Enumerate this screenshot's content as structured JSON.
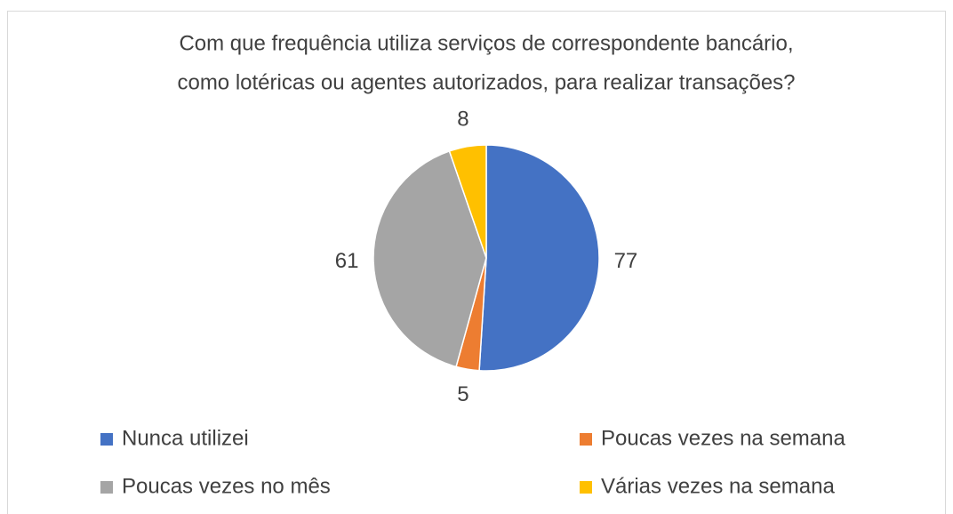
{
  "chart_data": {
    "type": "pie",
    "title": [
      "Com que frequência utiliza serviços de correspondente bancário,",
      "como lotéricas ou agentes autorizados, para realizar transações?"
    ],
    "categories": [
      "Nunca utilizei",
      "Poucas vezes na semana",
      "Poucas vezes no mês",
      "Várias vezes na semana"
    ],
    "values": [
      77,
      5,
      61,
      8
    ],
    "colors": [
      "#4472c4",
      "#ed7d31",
      "#a5a5a5",
      "#ffc000"
    ],
    "legend": "bottom"
  }
}
